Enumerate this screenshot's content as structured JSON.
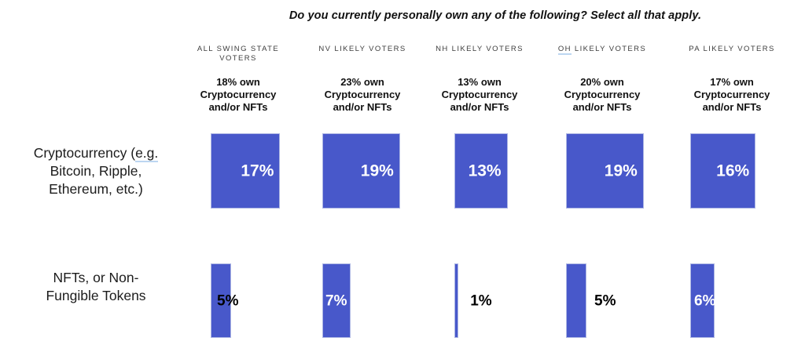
{
  "chart_data": {
    "type": "bar",
    "title": "Do you currently personally own any of the following? Select all that apply.",
    "unit": "%",
    "categories": [
      "ALL SWING STATE VOTERS",
      "NV LIKELY VOTERS",
      "NH LIKELY VOTERS",
      "OH LIKELY VOTERS",
      "PA LIKELY VOTERS"
    ],
    "category_label_lines": [
      [
        "ALL SWING STATE",
        "VOTERS"
      ],
      [
        "NV LIKELY VOTERS"
      ],
      [
        "NH LIKELY VOTERS"
      ],
      [
        "OH LIKELY VOTERS"
      ],
      [
        "PA LIKELY VOTERS"
      ]
    ],
    "category_summaries": [
      [
        "18% own",
        "Cryptocurrency",
        "and/or NFTs"
      ],
      [
        "23% own",
        "Cryptocurrency",
        "and/or NFTs"
      ],
      [
        "13% own",
        "Cryptocurrency",
        "and/or NFTs"
      ],
      [
        "20% own",
        "Cryptocurrency",
        "and/or NFTs"
      ],
      [
        "17% own",
        "Cryptocurrency",
        "and/or NFTs"
      ]
    ],
    "series": [
      {
        "name": "Cryptocurrency (e.g. Bitcoin, Ripple, Ethereum, etc.)",
        "label_lines": [
          "Cryptocurrency (e.g.",
          "Bitcoin, Ripple,",
          "Ethereum, etc.)"
        ],
        "values": [
          17,
          19,
          13,
          19,
          16
        ],
        "value_labels": [
          "17%",
          "19%",
          "13%",
          "19%",
          "16%"
        ]
      },
      {
        "name": "NFTs, or Non-Fungible Tokens",
        "label_lines": [
          "NFTs, or Non-",
          "Fungible Tokens"
        ],
        "values": [
          5,
          7,
          1,
          5,
          6
        ],
        "value_labels": [
          "5%",
          "7%",
          "1%",
          "5%",
          "6%"
        ]
      }
    ],
    "underlined_text": [
      "e.g.",
      "OH"
    ],
    "legend_position": "none",
    "grid": false,
    "colors": {
      "bar": "#4858CA",
      "bar_border": "#AEB7E4",
      "value_inside": "#FFFFFF",
      "value_outside": "#000000",
      "underline": "#BCD6F1",
      "title_text": "#111111",
      "header_text": "#3D3D3D",
      "summary_text": "#111111",
      "row_label_text": "#1C1C1C"
    }
  }
}
